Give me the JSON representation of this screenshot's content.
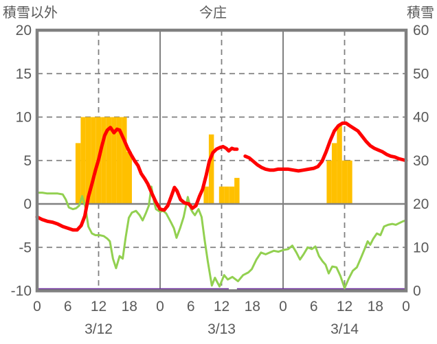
{
  "header": {
    "left": "積雪以外",
    "center": "今庄",
    "right": "積雪"
  },
  "chart_data": {
    "type": "combo",
    "title": "今庄",
    "left_axis": {
      "label": "積雪以外",
      "min": -10,
      "max": 20,
      "ticks": [
        20,
        15,
        10,
        5,
        0,
        -5,
        -10
      ],
      "dashed_gridlines": [
        15,
        10,
        5,
        -5
      ],
      "zero_line": 0
    },
    "right_axis": {
      "label": "積雪",
      "min": 0,
      "max": 60,
      "ticks": [
        60,
        50,
        40,
        30,
        20,
        10,
        0
      ]
    },
    "x_axis": {
      "total_hours": 72,
      "tick_step_hours": 6,
      "tick_labels": [
        "0",
        "6",
        "12",
        "18",
        "0",
        "6",
        "12",
        "18",
        "0",
        "6",
        "12",
        "18",
        "0"
      ],
      "day_labels": [
        {
          "label": "3/12",
          "center_hour": 12
        },
        {
          "label": "3/13",
          "center_hour": 36
        },
        {
          "label": "3/14",
          "center_hour": 60
        }
      ],
      "solid_day_boundary_hours": [
        24,
        48
      ],
      "dashed_midday_hours": [
        12,
        36,
        60
      ]
    },
    "series": {
      "snow_bars": {
        "type": "bar",
        "color": "#FFC000",
        "axis": "left",
        "bar_width_hours": 1,
        "points": [
          [
            8,
            7
          ],
          [
            9,
            10
          ],
          [
            10,
            10
          ],
          [
            11,
            10
          ],
          [
            12,
            10
          ],
          [
            13,
            10
          ],
          [
            14,
            10
          ],
          [
            15,
            10
          ],
          [
            16,
            10
          ],
          [
            17,
            10
          ],
          [
            18,
            6
          ],
          [
            33,
            2
          ],
          [
            34,
            8
          ],
          [
            36,
            2
          ],
          [
            37,
            2
          ],
          [
            38,
            2
          ],
          [
            39,
            3
          ],
          [
            57,
            5
          ],
          [
            58,
            7
          ],
          [
            59,
            9
          ],
          [
            60,
            5
          ],
          [
            61,
            5
          ]
        ]
      },
      "red_line": {
        "type": "line",
        "color": "#FF0000",
        "axis": "left",
        "width": 5,
        "segments": [
          [
            [
              0,
              -1.5
            ],
            [
              1,
              -1.8
            ],
            [
              2,
              -2
            ],
            [
              3,
              -2.1
            ],
            [
              4,
              -2.3
            ],
            [
              5,
              -2.6
            ],
            [
              6,
              -2.8
            ],
            [
              7,
              -3
            ],
            [
              7.8,
              -3
            ],
            [
              8.6,
              -2.5
            ],
            [
              9.3,
              -1.4
            ],
            [
              10,
              0.8
            ],
            [
              10.7,
              2.3
            ],
            [
              11.4,
              3.9
            ],
            [
              12,
              5.1
            ],
            [
              12.6,
              6.6
            ],
            [
              13.2,
              7.9
            ],
            [
              13.7,
              8.5
            ],
            [
              14.3,
              8.8
            ],
            [
              15,
              8.2
            ],
            [
              15.6,
              8.6
            ],
            [
              16.1,
              8.5
            ],
            [
              16.8,
              7.6
            ],
            [
              17.6,
              6.5
            ],
            [
              18.3,
              5.7
            ],
            [
              19,
              5
            ],
            [
              19.7,
              4.4
            ],
            [
              20.3,
              3.5
            ],
            [
              21,
              2.9
            ],
            [
              21.6,
              2.3
            ],
            [
              22.4,
              1.2
            ],
            [
              23.2,
              0.2
            ],
            [
              24,
              -0.6
            ],
            [
              24.8,
              -0.7
            ],
            [
              25.5,
              -0.2
            ],
            [
              26.2,
              0.9
            ],
            [
              26.8,
              1.9
            ],
            [
              27.3,
              1.5
            ],
            [
              28,
              0.5
            ],
            [
              28.8,
              0.1
            ],
            [
              29.6,
              0
            ],
            [
              30.3,
              -0.5
            ],
            [
              31,
              -0.2
            ],
            [
              31.7,
              0.9
            ],
            [
              32.3,
              1.7
            ],
            [
              33,
              3.3
            ],
            [
              33.6,
              4.9
            ],
            [
              34.3,
              5.9
            ],
            [
              35,
              6.3
            ],
            [
              35.7,
              6.5
            ],
            [
              36.3,
              6.6
            ],
            [
              36.9,
              6.4
            ],
            [
              37.4,
              6.1
            ],
            [
              38,
              6.4
            ],
            [
              38.5,
              6.3
            ],
            [
              39,
              6.3
            ]
          ],
          [
            [
              40.6,
              5.5
            ],
            [
              41.4,
              5.3
            ],
            [
              42.2,
              4.9
            ],
            [
              43,
              4.5
            ],
            [
              43.8,
              4.2
            ],
            [
              44.6,
              4
            ],
            [
              45.4,
              3.9
            ],
            [
              46.2,
              3.9
            ],
            [
              47,
              4
            ],
            [
              48,
              4
            ],
            [
              49,
              4
            ],
            [
              50,
              3.9
            ],
            [
              51,
              3.8
            ],
            [
              52,
              3.9
            ],
            [
              53,
              4
            ],
            [
              54,
              4.1
            ],
            [
              54.8,
              4.3
            ],
            [
              55.6,
              4.9
            ],
            [
              56.4,
              6
            ],
            [
              57.2,
              7.3
            ],
            [
              58,
              8.4
            ],
            [
              58.8,
              9
            ],
            [
              59.6,
              9.3
            ],
            [
              60.3,
              9.3
            ],
            [
              61,
              9
            ],
            [
              61.8,
              8.7
            ],
            [
              62.6,
              8.4
            ],
            [
              63.4,
              7.8
            ],
            [
              64.2,
              7.2
            ],
            [
              65,
              6.7
            ],
            [
              65.8,
              6.4
            ],
            [
              66.6,
              6.2
            ],
            [
              67.4,
              6
            ],
            [
              68.2,
              5.7
            ],
            [
              69,
              5.5
            ],
            [
              69.8,
              5.4
            ],
            [
              70.6,
              5.2
            ],
            [
              71.3,
              5.1
            ],
            [
              72,
              5
            ]
          ]
        ]
      },
      "green_line": {
        "type": "line",
        "color": "#92D050",
        "axis": "left",
        "width": 3,
        "points": [
          [
            0,
            1.3
          ],
          [
            1,
            1.3
          ],
          [
            2,
            1.2
          ],
          [
            3,
            1.2
          ],
          [
            4,
            1.2
          ],
          [
            5,
            1.1
          ],
          [
            5.6,
            0.5
          ],
          [
            6.2,
            -0.4
          ],
          [
            7,
            -0.6
          ],
          [
            7.6,
            -0.5
          ],
          [
            8.2,
            -0.2
          ],
          [
            8.8,
            0.9
          ],
          [
            9.4,
            -0.3
          ],
          [
            10,
            -2.6
          ],
          [
            10.7,
            -3.4
          ],
          [
            11.4,
            -3.6
          ],
          [
            12.2,
            -3.6
          ],
          [
            13,
            -3.7
          ],
          [
            13.7,
            -4
          ],
          [
            14.2,
            -4.3
          ],
          [
            14.8,
            -6.3
          ],
          [
            15.4,
            -7.4
          ],
          [
            16.1,
            -6
          ],
          [
            16.7,
            -6.3
          ],
          [
            17.3,
            -3.8
          ],
          [
            17.9,
            -1.6
          ],
          [
            18.5,
            -1
          ],
          [
            19.3,
            -0.8
          ],
          [
            20,
            -1.3
          ],
          [
            20.6,
            -1.9
          ],
          [
            21.2,
            -1.1
          ],
          [
            21.8,
            -0.2
          ],
          [
            22.3,
            2
          ],
          [
            22.8,
            0.3
          ],
          [
            23.2,
            -0.6
          ],
          [
            24,
            -0.9
          ],
          [
            24.6,
            -0.8
          ],
          [
            25.2,
            -1.1
          ],
          [
            26.1,
            -2.1
          ],
          [
            26.7,
            -2.8
          ],
          [
            27.2,
            -3.9
          ],
          [
            27.9,
            -2.8
          ],
          [
            28.6,
            -1.5
          ],
          [
            29.4,
            0.8
          ],
          [
            30,
            -0.6
          ],
          [
            30.4,
            -1
          ],
          [
            30.8,
            -1.3
          ],
          [
            31.5,
            -0.6
          ],
          [
            32.1,
            -1.5
          ],
          [
            32.7,
            -4.2
          ],
          [
            33.3,
            -6.6
          ],
          [
            34.1,
            -9.4
          ],
          [
            34.7,
            -8.5
          ],
          [
            35.6,
            -9.5
          ],
          [
            36.5,
            -8.2
          ],
          [
            37.2,
            -8.7
          ],
          [
            38.1,
            -8.4
          ],
          [
            39.2,
            -8.9
          ],
          [
            40.2,
            -8.2
          ],
          [
            41.2,
            -7.9
          ],
          [
            41.9,
            -7.5
          ],
          [
            42.8,
            -6.4
          ],
          [
            43.7,
            -5.6
          ],
          [
            44.6,
            -5.8
          ],
          [
            45.4,
            -5.6
          ],
          [
            46.2,
            -5.4
          ],
          [
            47.1,
            -5.5
          ],
          [
            48.1,
            -5.3
          ],
          [
            49,
            -5.2
          ],
          [
            49.8,
            -4.8
          ],
          [
            50.6,
            -5.6
          ],
          [
            51.3,
            -6.4
          ],
          [
            52,
            -5.8
          ],
          [
            52.8,
            -5
          ],
          [
            53.6,
            -5.2
          ],
          [
            54.3,
            -4.9
          ],
          [
            55,
            -6
          ],
          [
            55.7,
            -6.6
          ],
          [
            56.3,
            -7
          ],
          [
            56.9,
            -8
          ],
          [
            57.6,
            -7.2
          ],
          [
            58.4,
            -7.3
          ],
          [
            59.2,
            -8.3
          ],
          [
            60,
            -9.7
          ],
          [
            60.8,
            -8.6
          ],
          [
            61.6,
            -7.7
          ],
          [
            62.4,
            -7.3
          ],
          [
            63.2,
            -6.2
          ],
          [
            63.9,
            -5.2
          ],
          [
            64.5,
            -4.3
          ],
          [
            65,
            -4.7
          ],
          [
            65.6,
            -4
          ],
          [
            66.3,
            -3.4
          ],
          [
            67,
            -3.6
          ],
          [
            67.7,
            -2.6
          ],
          [
            68.5,
            -2.4
          ],
          [
            69.3,
            -2.3
          ],
          [
            70,
            -2.4
          ],
          [
            70.7,
            -2.2
          ],
          [
            71.4,
            -2
          ],
          [
            72,
            -1.9
          ]
        ]
      },
      "purple_line": {
        "type": "line",
        "color": "#7030A0",
        "axis": "left",
        "width": 3.5,
        "value": -10,
        "segments_hours": [
          [
            0,
            37.4
          ],
          [
            39,
            72
          ]
        ]
      }
    },
    "colors": {
      "bars": "#FFC000",
      "red": "#FF0000",
      "green": "#92D050",
      "purple": "#7030A0",
      "axis_gray": "#808080",
      "text_gray": "#595959"
    }
  }
}
